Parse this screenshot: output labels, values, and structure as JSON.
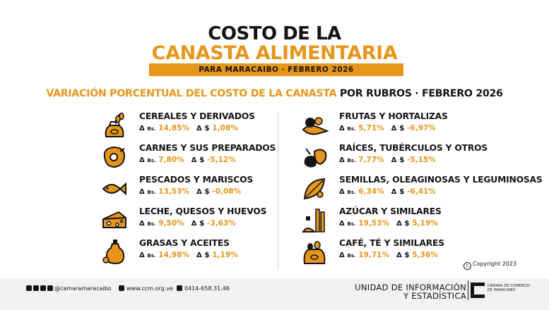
{
  "header": {
    "title_line1": "COSTO DE LA",
    "title_line2": "CANASTA ALIMENTARIA",
    "subtitle": "PARA MARACAIBO  ·  FEBRERO 2026"
  },
  "section": {
    "heading_orange": "VARIACIÓN PORCENTUAL DEL COSTO DE LA CANASTA",
    "heading_black": " POR RUBROS  ·  FEBRERO 2026"
  },
  "labels": {
    "triangle": "Δ",
    "bs": "Bs.",
    "usd": "$"
  },
  "items": [
    {
      "name": "CEREALES Y DERIVADOS",
      "bs": "14,85%",
      "usd": "1,08%",
      "icon": "cereal-sack-icon"
    },
    {
      "name": "CARNES Y SUS PREPARADOS",
      "bs": "7,80%",
      "usd": "-5,12%",
      "icon": "meat-steak-icon"
    },
    {
      "name": "PESCADOS Y MARISCOS",
      "bs": "13,53%",
      "usd": "-0,08%",
      "icon": "fish-icon"
    },
    {
      "name": "LECHE, QUESOS Y HUEVOS",
      "bs": "9,50%",
      "usd": "-3,63%",
      "icon": "cheese-icon"
    },
    {
      "name": "GRASAS Y ACEITES",
      "bs": "14,98%",
      "usd": "1,19%",
      "icon": "oil-bottle-icon"
    },
    {
      "name": "FRUTAS Y HORTALIZAS",
      "bs": "5,71%",
      "usd": "-6,97%",
      "icon": "vegetables-icon"
    },
    {
      "name": "RAÍCES, TUBÉRCULOS Y OTROS",
      "bs": "7,77%",
      "usd": "-5,15%",
      "icon": "tubers-icon"
    },
    {
      "name": "SEMILLAS, OLEAGINOSAS Y LEGUMINOSAS",
      "bs": "6,34%",
      "usd": "-6,41%",
      "icon": "seeds-icon"
    },
    {
      "name": "AZÚCAR Y SIMILARES",
      "bs": "19,53%",
      "usd": "5,19%",
      "icon": "sugarcane-icon"
    },
    {
      "name": "CAFÉ, TÉ Y SIMILARES",
      "bs": "19,71%",
      "usd": "5,36%",
      "icon": "coffee-sack-icon"
    }
  ],
  "copyright": "Copyright 2023",
  "footer": {
    "social_handle": "@camaramaracaibo",
    "website": "www.ccm.org.ve",
    "phone": "0414-658.31.46",
    "unit_line1": "UNIDAD DE INFORMACIÓN",
    "unit_line2": "Y ESTADÍSTICA",
    "logo_line1": "CÁMARA DE COMERCIO",
    "logo_line2": "DE MARACAIBO"
  },
  "colors": {
    "accent": "#e7961c",
    "text": "#141414",
    "footer_bg": "#f2f2f2"
  }
}
